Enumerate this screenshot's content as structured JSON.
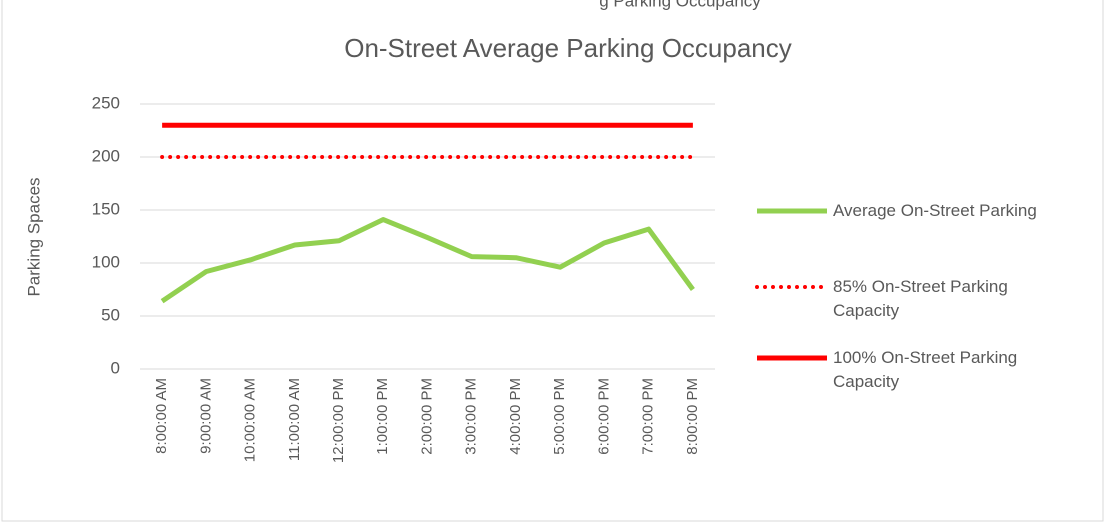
{
  "clipped_caption": "g Parking Occupancy",
  "chart_data": {
    "type": "line",
    "title": "On-Street Average Parking Occupancy",
    "y_label": "Parking Spaces",
    "categories": [
      "8:00:00 AM",
      "9:00:00 AM",
      "10:00:00 AM",
      "11:00:00 AM",
      "12:00:00 PM",
      "1:00:00 PM",
      "2:00:00 PM",
      "3:00:00 PM",
      "4:00:00 PM",
      "5:00:00 PM",
      "6:00:00 PM",
      "7:00:00 PM",
      "8:00:00 PM"
    ],
    "series": [
      {
        "name": "Average On-Street Parking",
        "color": "#92d050",
        "style": "solid",
        "values": [
          64,
          92,
          103,
          117,
          121,
          141,
          124,
          106,
          105,
          96,
          119,
          132,
          75
        ]
      },
      {
        "name": "85% On-Street Parking Capacity",
        "color": "#ff0000",
        "style": "dotted",
        "values": [
          200,
          200,
          200,
          200,
          200,
          200,
          200,
          200,
          200,
          200,
          200,
          200,
          200
        ]
      },
      {
        "name": "100% On-Street Parking Capacity",
        "color": "#ff0000",
        "style": "solid",
        "values": [
          230,
          230,
          230,
          230,
          230,
          230,
          230,
          230,
          230,
          230,
          230,
          230,
          230
        ]
      }
    ],
    "ylim": [
      0,
      250
    ],
    "yticks": [
      0,
      50,
      100,
      150,
      200,
      250
    ],
    "grid": true,
    "legend": "right"
  }
}
